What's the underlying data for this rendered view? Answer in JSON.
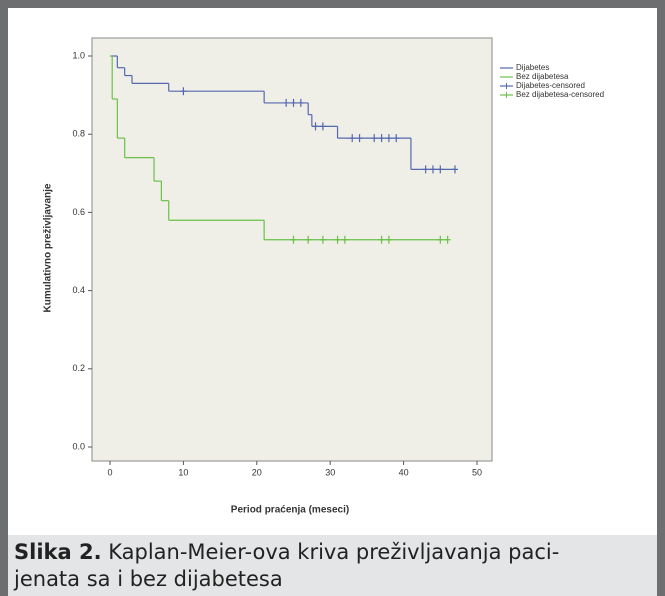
{
  "chart_data": {
    "type": "km",
    "xlabel": "Period praćenja (meseci)",
    "ylabel": "Kumulativno preživljavanje",
    "xlim": [
      0,
      50
    ],
    "xticks": [
      0,
      10,
      20,
      30,
      40,
      50
    ],
    "ylim": [
      0,
      1
    ],
    "yticks": [
      {
        "value": 0,
        "label": "0.0"
      },
      {
        "value": 0.2,
        "label": "0.2"
      },
      {
        "value": 0.4,
        "label": "0.4"
      },
      {
        "value": 0.6,
        "label": "0.6"
      },
      {
        "value": 0.8,
        "label": "0.8"
      },
      {
        "value": 1,
        "label": "1.0"
      }
    ],
    "series": [
      {
        "name": "Dijabetes",
        "color": "#5468b0",
        "style": "step",
        "x": [
          0,
          1,
          2,
          3,
          8,
          21,
          27,
          27.5,
          31,
          41,
          47
        ],
        "values": [
          1,
          0.97,
          0.95,
          0.93,
          0.91,
          0.88,
          0.85,
          0.82,
          0.79,
          0.71,
          0.71
        ]
      },
      {
        "name": "Bez dijabetesa",
        "color": "#6cc04a",
        "style": "step",
        "x": [
          0,
          0.3,
          1,
          2,
          6,
          7,
          8,
          21,
          46
        ],
        "values": [
          1,
          0.89,
          0.79,
          0.74,
          0.68,
          0.63,
          0.58,
          0.53,
          0.53
        ]
      },
      {
        "name": "Dijabetes-censored",
        "color": "#5468b0",
        "style": "censored",
        "x": [
          10,
          24,
          25,
          26,
          28,
          29,
          33,
          34,
          36,
          37,
          38,
          39,
          43,
          44,
          45,
          47
        ],
        "values": [
          0.91,
          0.88,
          0.88,
          0.88,
          0.82,
          0.82,
          0.79,
          0.79,
          0.79,
          0.79,
          0.79,
          0.79,
          0.71,
          0.71,
          0.71,
          0.71
        ]
      },
      {
        "name": "Bez dijabetesa-censored",
        "color": "#6cc04a",
        "style": "censored",
        "x": [
          25,
          27,
          29,
          31,
          32,
          37,
          38,
          45,
          46
        ],
        "values": [
          0.53,
          0.53,
          0.53,
          0.53,
          0.53,
          0.53,
          0.53,
          0.53,
          0.53
        ]
      }
    ],
    "caption": {
      "label": "Slika 2.",
      "lines": [
        " Kaplan-Meier-ova kriva preživljavanja paci-",
        "jenata sa i bez dijabetesa"
      ]
    }
  }
}
